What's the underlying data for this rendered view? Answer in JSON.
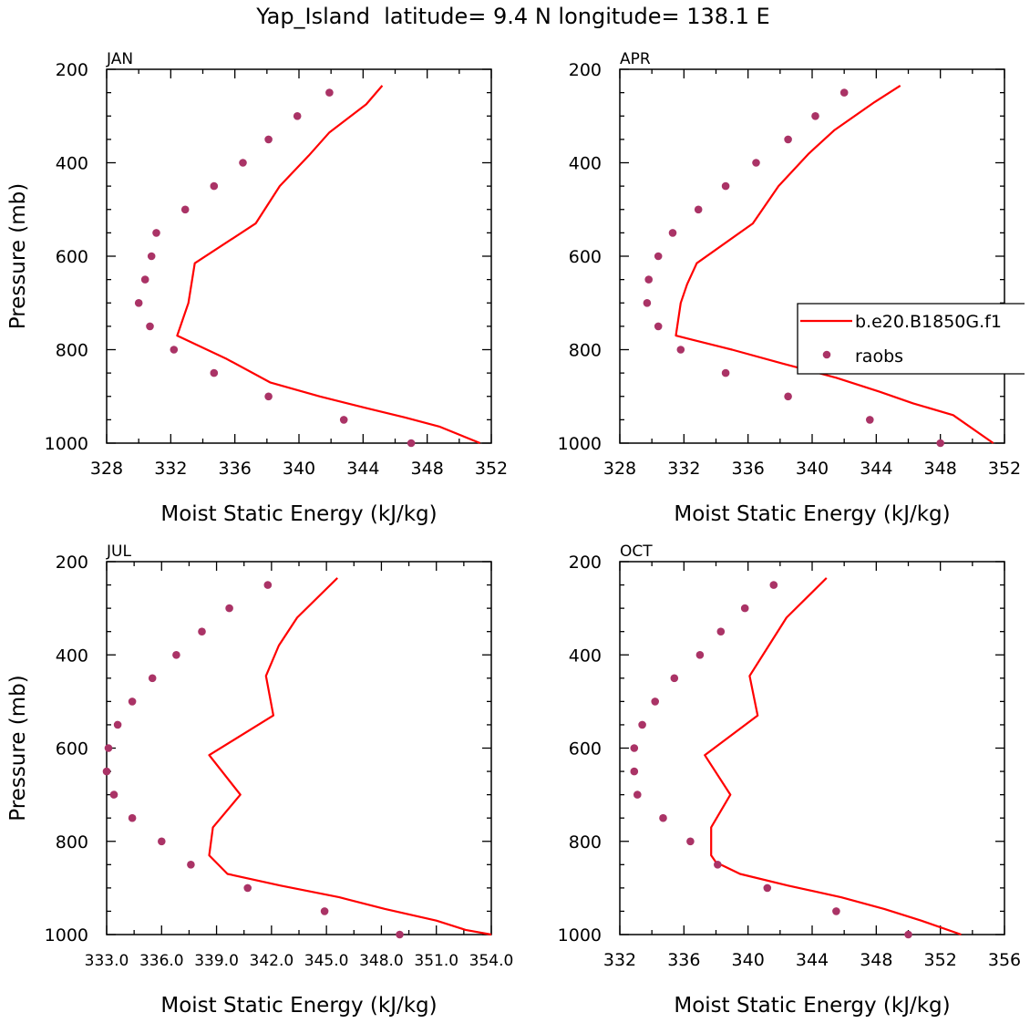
{
  "title": "Yap_Island  latitude= 9.4 N longitude= 138.1 E",
  "colors": {
    "model": "#ff0000",
    "raobs": "#aa3366",
    "axis": "#000000"
  },
  "legend": {
    "entries": [
      "b.e20.B1850G.f1",
      "raobs"
    ],
    "placement": "right, inside APR panel"
  },
  "chart_data": [
    {
      "type": "line",
      "month": "JAN",
      "xlabel": "Moist Static Energy (kJ/kg)",
      "ylabel": "Pressure (mb)",
      "xlim": [
        328,
        352
      ],
      "ylim": [
        1000,
        200
      ],
      "xticks": [
        "328",
        "332",
        "336",
        "340",
        "344",
        "348",
        "352"
      ],
      "yticks": [
        "200",
        "400",
        "600",
        "800",
        "1000"
      ],
      "series": [
        {
          "name": "b.e20.B1850G.f1",
          "style": "line",
          "x": [
            345.2,
            344.2,
            341.9,
            340.6,
            338.8,
            337.3,
            333.5,
            333.1,
            332.4,
            335.5,
            338.2,
            341.3,
            344.2,
            346.6,
            348.8,
            351.3
          ],
          "y": [
            235,
            275,
            335,
            385,
            450,
            530,
            615,
            700,
            770,
            820,
            870,
            900,
            925,
            945,
            965,
            1000
          ]
        },
        {
          "name": "raobs",
          "style": "markers",
          "x": [
            341.9,
            339.9,
            338.1,
            336.5,
            334.7,
            332.9,
            331.1,
            330.8,
            330.4,
            330.0,
            330.7,
            332.2,
            334.7,
            338.1,
            342.8,
            347.0
          ],
          "y": [
            250,
            300,
            350,
            400,
            450,
            500,
            550,
            600,
            650,
            700,
            750,
            800,
            850,
            900,
            950,
            1000
          ]
        }
      ]
    },
    {
      "type": "line",
      "month": "APR",
      "xlabel": "Moist Static Energy (kJ/kg)",
      "ylabel": "",
      "xlim": [
        328,
        352
      ],
      "ylim": [
        1000,
        200
      ],
      "xticks": [
        "328",
        "332",
        "336",
        "340",
        "344",
        "348",
        "352"
      ],
      "yticks": [
        "200",
        "400",
        "600",
        "800",
        "1000"
      ],
      "series": [
        {
          "name": "b.e20.B1850G.f1",
          "style": "line",
          "x": [
            345.5,
            343.9,
            341.4,
            339.8,
            337.9,
            336.3,
            332.8,
            332.2,
            331.8,
            331.5,
            335.0,
            338.2,
            341.5,
            344.2,
            346.3,
            348.8,
            351.3
          ],
          "y": [
            235,
            270,
            330,
            380,
            450,
            530,
            615,
            660,
            700,
            770,
            800,
            830,
            860,
            890,
            915,
            940,
            1000
          ]
        },
        {
          "name": "raobs",
          "style": "markers",
          "x": [
            342.0,
            340.2,
            338.5,
            336.5,
            334.6,
            332.9,
            331.3,
            330.4,
            329.8,
            329.7,
            330.4,
            331.8,
            334.6,
            338.5,
            343.6,
            348.0
          ],
          "y": [
            250,
            300,
            350,
            400,
            450,
            500,
            550,
            600,
            650,
            700,
            750,
            800,
            850,
            900,
            950,
            1000
          ]
        }
      ]
    },
    {
      "type": "line",
      "month": "JUL",
      "xlabel": "Moist Static Energy (kJ/kg)",
      "ylabel": "Pressure (mb)",
      "xlim": [
        333.0,
        354.0
      ],
      "ylim": [
        1000,
        200
      ],
      "xticks": [
        "333.0",
        "336.0",
        "339.0",
        "342.0",
        "345.0",
        "348.0",
        "351.0",
        "354.0"
      ],
      "yticks": [
        "200",
        "400",
        "600",
        "800",
        "1000"
      ],
      "series": [
        {
          "name": "b.e20.B1850G.f1",
          "style": "line",
          "x": [
            345.6,
            343.4,
            342.4,
            341.7,
            342.1,
            338.6,
            340.3,
            338.8,
            338.6,
            339.6,
            342.5,
            345.7,
            348.2,
            351.0,
            352.6,
            354.0
          ],
          "y": [
            235,
            320,
            380,
            445,
            530,
            615,
            700,
            770,
            830,
            870,
            895,
            920,
            945,
            970,
            990,
            1000
          ]
        },
        {
          "name": "raobs",
          "style": "markers",
          "x": [
            341.8,
            339.7,
            338.2,
            336.8,
            335.5,
            334.4,
            333.6,
            333.1,
            333.0,
            333.4,
            334.4,
            336.0,
            337.6,
            340.7,
            344.9,
            349.0
          ],
          "y": [
            250,
            300,
            350,
            400,
            450,
            500,
            550,
            600,
            650,
            700,
            750,
            800,
            850,
            900,
            950,
            1000
          ]
        }
      ]
    },
    {
      "type": "line",
      "month": "OCT",
      "xlabel": "Moist Static Energy (kJ/kg)",
      "ylabel": "",
      "xlim": [
        332,
        356
      ],
      "ylim": [
        1000,
        200
      ],
      "xticks": [
        "332",
        "336",
        "340",
        "344",
        "348",
        "352",
        "356"
      ],
      "yticks": [
        "200",
        "400",
        "600",
        "800",
        "1000"
      ],
      "series": [
        {
          "name": "b.e20.B1850G.f1",
          "style": "line",
          "x": [
            344.9,
            342.4,
            341.3,
            340.1,
            340.6,
            337.3,
            338.9,
            337.7,
            337.7,
            338.0,
            339.5,
            342.5,
            345.8,
            348.5,
            350.8,
            353.3
          ],
          "y": [
            235,
            320,
            380,
            445,
            530,
            615,
            700,
            770,
            830,
            845,
            870,
            895,
            920,
            945,
            970,
            1000
          ]
        },
        {
          "name": "raobs",
          "style": "markers",
          "x": [
            341.6,
            339.8,
            338.3,
            337.0,
            335.4,
            334.2,
            333.4,
            332.9,
            332.9,
            333.1,
            334.7,
            336.4,
            338.1,
            341.2,
            345.5,
            350.0
          ],
          "y": [
            250,
            300,
            350,
            400,
            450,
            500,
            550,
            600,
            650,
            700,
            750,
            800,
            850,
            900,
            950,
            1000
          ]
        }
      ]
    }
  ]
}
